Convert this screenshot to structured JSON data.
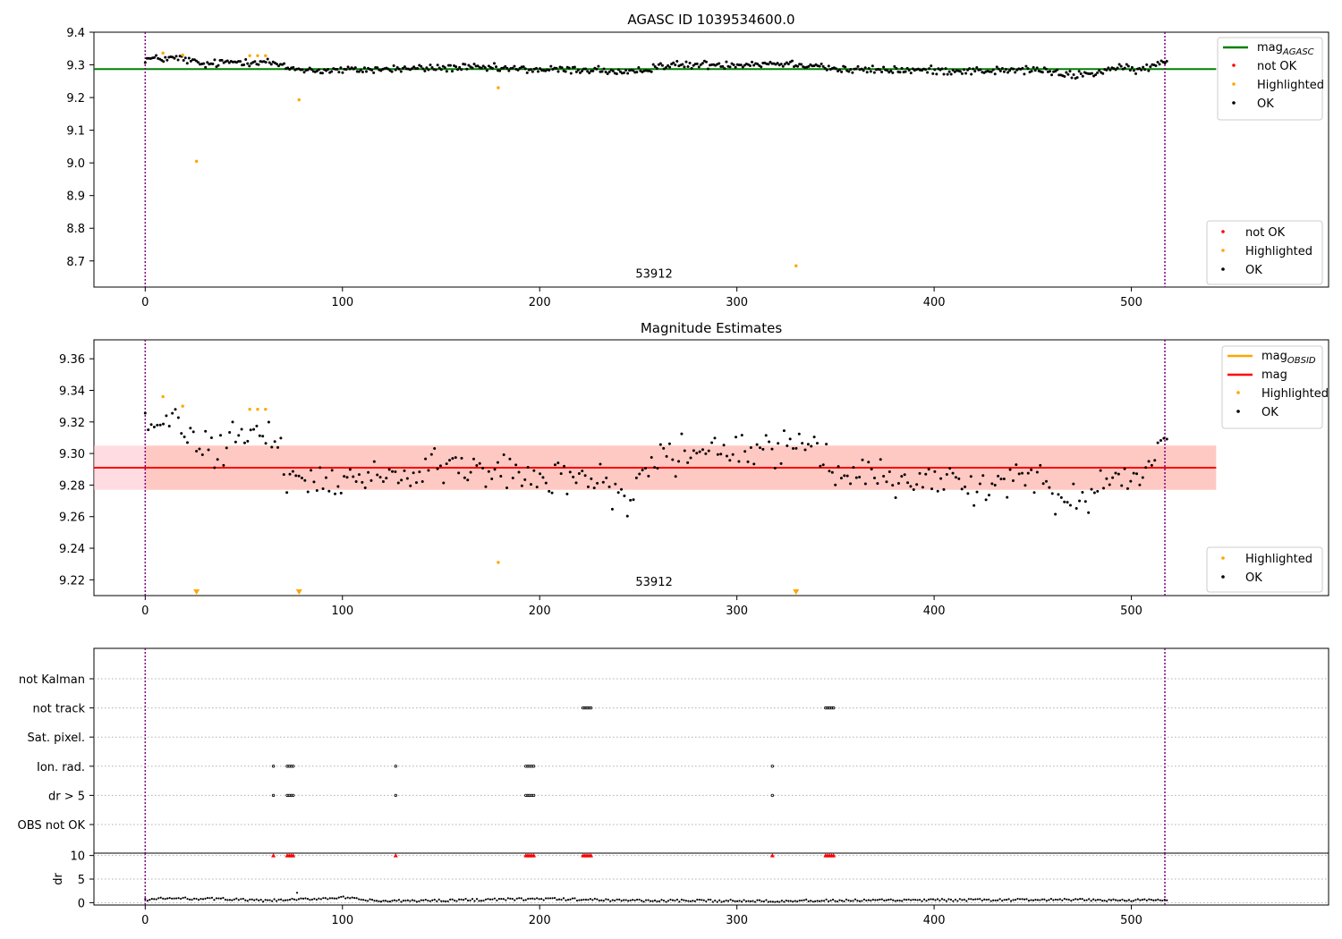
{
  "chart_data": [
    {
      "type": "scatter",
      "title": "AGASC ID 1039534600.0",
      "xlim": [
        -26,
        600
      ],
      "ylim": [
        8.62,
        9.4
      ],
      "x_ticks": [
        0,
        100,
        200,
        300,
        400,
        500
      ],
      "y_ticks": [
        "8.7",
        "8.8",
        "8.9",
        "9.0",
        "9.1",
        "9.2",
        "9.3",
        "9.4"
      ],
      "grid": false,
      "vlines": [
        0,
        517
      ],
      "annotation": {
        "text": "53912",
        "x": 258,
        "y": 8.66
      },
      "reference_lines": [
        {
          "name": "mag_AGASC",
          "y": 9.287,
          "x_range": [
            -26,
            543
          ],
          "color": "#008000"
        }
      ],
      "legend_lines": [
        {
          "label_main": "mag",
          "label_sub": "AGASC",
          "color": "#008000"
        }
      ],
      "legend_points": [
        {
          "label": "not OK",
          "color": "#ff0000"
        },
        {
          "label": "Highlighted",
          "color": "#ffa500"
        },
        {
          "label": "OK",
          "color": "#000000"
        }
      ],
      "ok_series": {
        "color": "#000000",
        "x_start": 0,
        "x_end": 518,
        "n_points": 560,
        "baseline": [
          [
            0,
            9.318
          ],
          [
            18,
            9.32
          ],
          [
            30,
            9.3
          ],
          [
            45,
            9.31
          ],
          [
            62,
            9.31
          ],
          [
            72,
            9.29
          ],
          [
            90,
            9.282
          ],
          [
            130,
            9.288
          ],
          [
            160,
            9.292
          ],
          [
            200,
            9.285
          ],
          [
            230,
            9.285
          ],
          [
            245,
            9.272
          ],
          [
            250,
            9.28
          ],
          [
            260,
            9.298
          ],
          [
            280,
            9.3
          ],
          [
            300,
            9.302
          ],
          [
            320,
            9.305
          ],
          [
            340,
            9.3
          ],
          [
            352,
            9.285
          ],
          [
            400,
            9.283
          ],
          [
            430,
            9.282
          ],
          [
            455,
            9.285
          ],
          [
            465,
            9.268
          ],
          [
            480,
            9.272
          ],
          [
            490,
            9.29
          ],
          [
            505,
            9.285
          ],
          [
            518,
            9.31
          ]
        ],
        "spread": 0.012
      },
      "highlighted_points": [
        [
          9,
          9.336
        ],
        [
          19,
          9.33
        ],
        [
          26,
          9.005
        ],
        [
          53,
          9.328
        ],
        [
          57,
          9.328
        ],
        [
          61,
          9.328
        ],
        [
          78,
          9.193
        ],
        [
          179,
          9.23
        ],
        [
          330,
          8.685
        ]
      ],
      "not_ok_points": []
    },
    {
      "type": "scatter",
      "title": "Magnitude Estimates",
      "xlim": [
        -26,
        600
      ],
      "ylim": [
        9.21,
        9.372
      ],
      "x_ticks": [
        0,
        100,
        200,
        300,
        400,
        500
      ],
      "y_ticks": [
        "9.22",
        "9.24",
        "9.26",
        "9.28",
        "9.30",
        "9.32",
        "9.34",
        "9.36"
      ],
      "grid": false,
      "vlines": [
        0,
        517
      ],
      "annotation": {
        "text": "53912",
        "x": 258,
        "y": 9.2185
      },
      "mag_line": {
        "y": 9.291,
        "color": "#ff0000",
        "x_range": [
          -26,
          543
        ]
      },
      "mag_band": {
        "y_low": 9.277,
        "y_high": 9.305,
        "x_range": [
          -26,
          543
        ]
      },
      "legend_lines": [
        {
          "label_main": "mag",
          "label_sub": "OBSID",
          "color": "#ffa500"
        },
        {
          "label_main": "mag",
          "label_sub": "",
          "color": "#ff0000"
        }
      ],
      "legend_points": [
        {
          "label": "Highlighted",
          "color": "#ffa500"
        },
        {
          "label": "OK",
          "color": "#000000"
        }
      ],
      "ok_series": {
        "color": "#000000",
        "x_start": 0,
        "x_end": 518,
        "n_points": 340,
        "baseline": [
          [
            0,
            9.318
          ],
          [
            18,
            9.318
          ],
          [
            30,
            9.3
          ],
          [
            45,
            9.31
          ],
          [
            62,
            9.31
          ],
          [
            72,
            9.29
          ],
          [
            90,
            9.282
          ],
          [
            130,
            9.288
          ],
          [
            160,
            9.292
          ],
          [
            200,
            9.285
          ],
          [
            230,
            9.285
          ],
          [
            245,
            9.272
          ],
          [
            250,
            9.28
          ],
          [
            260,
            9.298
          ],
          [
            280,
            9.3
          ],
          [
            300,
            9.302
          ],
          [
            320,
            9.305
          ],
          [
            340,
            9.3
          ],
          [
            352,
            9.285
          ],
          [
            400,
            9.283
          ],
          [
            430,
            9.282
          ],
          [
            455,
            9.285
          ],
          [
            465,
            9.268
          ],
          [
            480,
            9.272
          ],
          [
            490,
            9.29
          ],
          [
            505,
            9.285
          ],
          [
            518,
            9.31
          ]
        ],
        "spread": 0.012
      },
      "highlighted_points": [
        [
          9,
          9.336
        ],
        [
          19,
          9.33
        ],
        [
          53,
          9.328
        ],
        [
          57,
          9.328
        ],
        [
          61,
          9.328
        ],
        [
          179,
          9.231
        ]
      ],
      "below_range_markers": [
        26,
        78,
        330
      ]
    },
    {
      "type": "scatter",
      "title": "",
      "xlim": [
        -26,
        600
      ],
      "flag_rows": [
        "not Kalman",
        "not track",
        "Sat. pixel.",
        "Ion. rad.",
        "dr > 5",
        "OBS not OK"
      ],
      "flags": {
        "not track": [
          [
            222,
            226
          ],
          [
            345,
            349
          ]
        ],
        "Ion. rad.": [
          [
            65,
            65
          ],
          [
            72,
            75
          ],
          [
            127,
            127
          ],
          [
            193,
            197
          ],
          [
            318,
            318
          ]
        ],
        "dr > 5": [
          [
            65,
            65
          ],
          [
            72,
            75
          ],
          [
            127,
            127
          ],
          [
            193,
            197
          ],
          [
            318,
            318
          ]
        ]
      },
      "vlines": [
        0,
        517
      ]
    },
    {
      "type": "scatter",
      "title": "",
      "xlim": [
        -26,
        600
      ],
      "ylim": [
        -0.5,
        10.5
      ],
      "x_ticks": [
        0,
        100,
        200,
        300,
        400,
        500
      ],
      "y_ticks": [
        "0",
        "5",
        "10"
      ],
      "ylabel": "dr",
      "grid": true,
      "vlines": [
        0,
        517
      ],
      "dr_series": {
        "color": "#000000",
        "x_start": 0,
        "x_end": 518,
        "n_points": 460,
        "baseline": [
          [
            0,
            0.6
          ],
          [
            10,
            0.9
          ],
          [
            40,
            0.8
          ],
          [
            60,
            0.4
          ],
          [
            80,
            0.7
          ],
          [
            100,
            1.1
          ],
          [
            110,
            0.6
          ],
          [
            120,
            0.3
          ],
          [
            150,
            0.5
          ],
          [
            200,
            0.8
          ],
          [
            260,
            0.4
          ],
          [
            330,
            0.4
          ],
          [
            380,
            0.5
          ],
          [
            450,
            0.6
          ],
          [
            518,
            0.5
          ]
        ],
        "outliers": [
          [
            77,
            2.1
          ]
        ]
      },
      "dr_flag_markers": [
        [
          65,
          65
        ],
        [
          72,
          75
        ],
        [
          127,
          127
        ],
        [
          193,
          197
        ],
        [
          222,
          226
        ],
        [
          318,
          318
        ],
        [
          345,
          349
        ]
      ]
    }
  ]
}
